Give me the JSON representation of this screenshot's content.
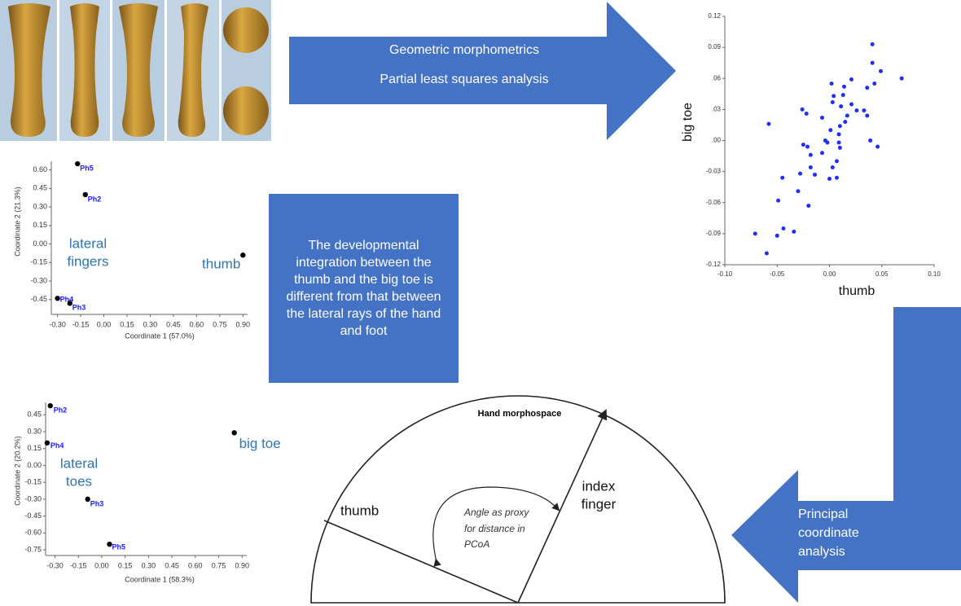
{
  "arrows": {
    "top": [
      "Geometric morphometrics",
      "Partial least squares analysis"
    ],
    "bottom": [
      "Principal",
      "coordinate",
      "analysis"
    ]
  },
  "conclusion": "The developmental integration between the thumb and the big toe is different from that between the lateral rays of the hand and foot",
  "morphospace": {
    "title": "Hand morphospace",
    "thumb": "thumb",
    "index": [
      "index",
      "finger"
    ],
    "angle_note": [
      "Angle as proxy",
      "for distance in",
      "PCoA"
    ]
  },
  "chart_data": [
    {
      "type": "scatter",
      "xlabel": "thumb",
      "ylabel": "big toe",
      "color": "#1f2eff",
      "x": [
        0.041,
        0.049,
        0.041,
        0.043,
        0.036,
        0.069,
        0.021,
        0.014,
        0.002,
        0.004,
        0.013,
        0.003,
        0.011,
        0.021,
        0.026,
        0.033,
        0.036,
        0.017,
        0.015,
        0.01,
        -0.007,
        -0.026,
        -0.022,
        -0.058,
        0.001,
        0.009,
        -0.002,
        0.009,
        -0.004,
        0.039,
        0.046,
        0.01,
        -0.025,
        -0.021,
        -0.007,
        -0.018,
        0.007,
        0.003,
        -0.018,
        -0.028,
        -0.014,
        0.0,
        0.007,
        -0.045,
        -0.03,
        -0.049,
        -0.02,
        -0.044,
        -0.034,
        -0.05,
        -0.071,
        -0.06
      ],
      "values": [
        0.093,
        0.067,
        0.075,
        0.055,
        0.051,
        0.06,
        0.059,
        0.052,
        0.055,
        0.043,
        0.044,
        0.037,
        0.033,
        0.035,
        0.029,
        0.029,
        0.024,
        0.024,
        0.018,
        0.014,
        0.022,
        0.03,
        0.026,
        0.016,
        0.01,
        0.006,
        -0.002,
        -0.002,
        0.0,
        0.0,
        -0.006,
        -0.007,
        -0.004,
        -0.006,
        -0.012,
        -0.014,
        -0.02,
        -0.026,
        -0.026,
        -0.032,
        -0.033,
        -0.037,
        -0.036,
        -0.036,
        -0.049,
        -0.058,
        -0.063,
        -0.085,
        -0.088,
        -0.092,
        -0.09,
        -0.109
      ],
      "xlim": [
        -0.1,
        0.1
      ],
      "ylim": [
        -0.12,
        0.12
      ],
      "xticks": [
        {
          "value": -0.1,
          "label": "-0.10"
        },
        {
          "value": -0.05,
          "label": "-0.05"
        },
        {
          "value": 0,
          "label": "0.00"
        },
        {
          "value": 0.05,
          "label": "0.05"
        },
        {
          "value": 0.1,
          "label": "0.10"
        }
      ],
      "yticks": [
        {
          "value": 0.12,
          "label": "0.12"
        },
        {
          "value": 0.09,
          "label": "0.09"
        },
        {
          "value": 0.06,
          "label": ".06"
        },
        {
          "value": 0.03,
          "label": ".03"
        },
        {
          "value": 0,
          "label": ".00"
        },
        {
          "value": -0.03,
          "label": "-0.03"
        },
        {
          "value": -0.06,
          "label": "-0.06"
        },
        {
          "value": -0.09,
          "label": "-0.09"
        },
        {
          "value": -0.12,
          "label": "-0.12"
        }
      ]
    },
    {
      "type": "scatter",
      "xlabel": "Coordinate 1 (57.0%)",
      "ylabel": "Coordinate 2 (21.3%)",
      "color": "#000000",
      "x": [
        -0.17,
        -0.12,
        0.9,
        -0.3,
        -0.22
      ],
      "values": [
        0.65,
        0.4,
        -0.09,
        -0.44,
        -0.48
      ],
      "labels": [
        "Ph5",
        "Ph2",
        "thumb",
        "Ph4",
        "Ph3"
      ],
      "annotation": [
        "lateral",
        "fingers"
      ],
      "xlim": [
        -0.34,
        0.93
      ],
      "ylim": [
        -0.57,
        0.67
      ],
      "xticks": [
        {
          "value": -0.3,
          "label": "-0.30"
        },
        {
          "value": -0.15,
          "label": "-0.15"
        },
        {
          "value": 0,
          "label": "0.00"
        },
        {
          "value": 0.15,
          "label": "0.15"
        },
        {
          "value": 0.3,
          "label": "0.30"
        },
        {
          "value": 0.45,
          "label": "0.45"
        },
        {
          "value": 0.6,
          "label": "0.60"
        },
        {
          "value": 0.75,
          "label": "0.75"
        },
        {
          "value": 0.9,
          "label": "0.90"
        }
      ],
      "yticks": [
        {
          "value": 0.6,
          "label": "0.60"
        },
        {
          "value": 0.45,
          "label": "0.45"
        },
        {
          "value": 0.3,
          "label": "0.30"
        },
        {
          "value": 0.15,
          "label": "0.15"
        },
        {
          "value": 0,
          "label": "0.00"
        },
        {
          "value": -0.15,
          "label": "-0.15"
        },
        {
          "value": -0.3,
          "label": "-0.30"
        },
        {
          "value": -0.45,
          "label": "-0.45"
        }
      ]
    },
    {
      "type": "scatter",
      "xlabel": "Coordinate 1 (58.3%)",
      "ylabel": "Coordinate 2 (20.2%)",
      "color": "#000000",
      "x": [
        -0.33,
        -0.35,
        0.85,
        -0.09,
        0.05
      ],
      "values": [
        0.53,
        0.2,
        0.29,
        -0.3,
        -0.7
      ],
      "labels": [
        "Ph2",
        "Ph4",
        "big toe",
        "Ph3",
        "Ph5"
      ],
      "annotation": [
        "lateral",
        "toes"
      ],
      "xlim": [
        -0.36,
        0.93
      ],
      "ylim": [
        -0.8,
        0.56
      ],
      "xticks": [
        {
          "value": -0.3,
          "label": "-0.30"
        },
        {
          "value": -0.15,
          "label": "-0.15"
        },
        {
          "value": 0,
          "label": "0.00"
        },
        {
          "value": 0.15,
          "label": "0.15"
        },
        {
          "value": 0.3,
          "label": "0.30"
        },
        {
          "value": 0.45,
          "label": "0.45"
        },
        {
          "value": 0.6,
          "label": "0.60"
        },
        {
          "value": 0.75,
          "label": "0.75"
        },
        {
          "value": 0.9,
          "label": "0.90"
        }
      ],
      "yticks": [
        {
          "value": 0.45,
          "label": "0.45"
        },
        {
          "value": 0.3,
          "label": "0.30"
        },
        {
          "value": 0.15,
          "label": "0.15"
        },
        {
          "value": 0,
          "label": "0.00"
        },
        {
          "value": -0.15,
          "label": "-0.15"
        },
        {
          "value": -0.3,
          "label": "-0.30"
        },
        {
          "value": -0.45,
          "label": "-0.45"
        },
        {
          "value": -0.6,
          "label": "-0.60"
        },
        {
          "value": -0.75,
          "label": "-0.75"
        }
      ]
    }
  ]
}
